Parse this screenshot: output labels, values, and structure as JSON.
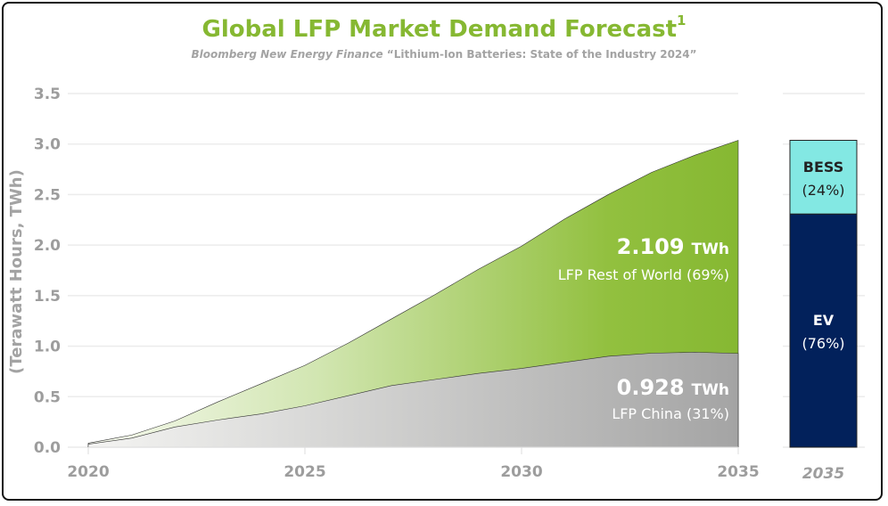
{
  "title": "Global LFP Market Demand Forecast",
  "title_superscript": "1",
  "subtitle_source": "Bloomberg New Energy Finance",
  "subtitle_report": "“Lithium-Ion Batteries: State of the Industry 2024”",
  "chart_data": [
    {
      "type": "area",
      "stacked": true,
      "ylabel": "(Terawatt Hours, TWh)",
      "ylim": [
        0,
        3.5
      ],
      "yticks": [
        "0.0",
        "0.5",
        "1.0",
        "1.5",
        "2.0",
        "2.5",
        "3.0",
        "3.5"
      ],
      "xlim": [
        2020,
        2035
      ],
      "xticks": [
        "2020",
        "2025",
        "2030",
        "2035"
      ],
      "grid": true,
      "x": [
        2020,
        2021,
        2022,
        2023,
        2024,
        2025,
        2026,
        2027,
        2028,
        2029,
        2030,
        2031,
        2032,
        2033,
        2034,
        2035
      ],
      "series": [
        {
          "name": "LFP China (31%)",
          "value_label": "0.928",
          "unit": "TWh",
          "color": "#a6a6a6",
          "values": [
            0.03,
            0.09,
            0.2,
            0.27,
            0.33,
            0.41,
            0.51,
            0.61,
            0.67,
            0.73,
            0.78,
            0.84,
            0.9,
            0.93,
            0.94,
            0.928
          ]
        },
        {
          "name": "LFP Rest of World (69%)",
          "value_label": "2.109",
          "unit": "TWh",
          "color": "#8aba34",
          "values": [
            0.01,
            0.03,
            0.06,
            0.18,
            0.3,
            0.4,
            0.52,
            0.66,
            0.84,
            1.03,
            1.21,
            1.42,
            1.6,
            1.79,
            1.95,
            2.109
          ]
        }
      ]
    },
    {
      "type": "bar",
      "stacked": true,
      "category": "2035",
      "segments": [
        {
          "name": "EV",
          "label": "(76%)",
          "percent": 76,
          "color": "#02215b"
        },
        {
          "name": "BESS",
          "label": "(24%)",
          "percent": 24,
          "color": "#83e8e3"
        }
      ]
    }
  ]
}
